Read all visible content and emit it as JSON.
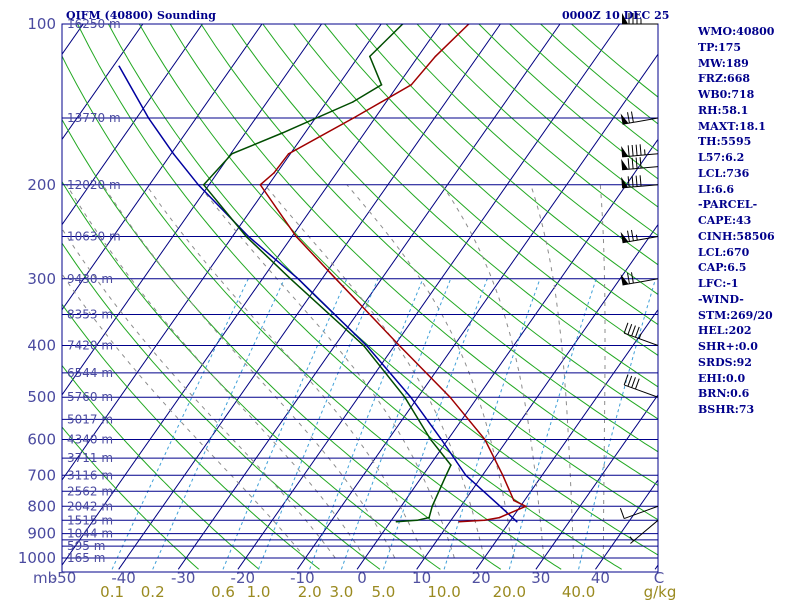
{
  "header": {
    "station": "QIFM (40800) Sounding",
    "time": "0000Z 10 DEC 25"
  },
  "indices": [
    "WMO:40800",
    "TP:175",
    "MW:189",
    "FRZ:668",
    "WB0:718",
    "RH:58.1",
    "MAXT:18.1",
    "TH:5595",
    "L57:6.2",
    "LCL:736",
    "LI:6.6",
    "-PARCEL-",
    "CAPE:43",
    "CINH:58506",
    "LCL:670",
    "CAP:6.5",
    "LFC:-1",
    "-WIND-",
    "STM:269/20",
    "HEL:202",
    "SHR+:0.0",
    "SRDS:92",
    "EHI:0.0",
    "BRN:0.6",
    "BSHR:73"
  ],
  "colors": {
    "isobar": "#00008b",
    "isotherm": "#000080",
    "dry_adiabat": "#22a822",
    "moist_adiabat": "#8c8c8c",
    "mixing_ratio": "#3fa0d8",
    "temperature": "#a00000",
    "dewpoint": "#004d00",
    "parcel": "#0000a0",
    "wind_barb": "#000000",
    "labels": "#4a4aa0",
    "mixing_ratio_labels": "#9a8a20"
  },
  "chart_data": {
    "type": "line",
    "chart_kind": "skew-T log-P sounding diagram",
    "pressure_axis": {
      "unit": "mb",
      "range": [
        1000,
        100
      ],
      "log_scale": true,
      "labels": [
        100,
        200,
        300,
        400,
        500,
        600,
        700,
        800,
        900,
        1000
      ]
    },
    "temperature_axis": {
      "unit": "C",
      "labels": [
        -50,
        -40,
        -30,
        -20,
        -10,
        0,
        10,
        20,
        30,
        40
      ],
      "end_label": "C",
      "range_at_1000mb": [
        -50,
        50
      ]
    },
    "isobars_mb": [
      100,
      150,
      200,
      250,
      300,
      350,
      400,
      450,
      500,
      550,
      600,
      650,
      700,
      750,
      800,
      850,
      900,
      925,
      950,
      1000
    ],
    "height_labels": [
      {
        "p": 100,
        "label": "16250 m"
      },
      {
        "p": 150,
        "label": "13770 m"
      },
      {
        "p": 200,
        "label": "12020 m"
      },
      {
        "p": 250,
        "label": "10630 m"
      },
      {
        "p": 300,
        "label": "9430 m"
      },
      {
        "p": 350,
        "label": "8353 m"
      },
      {
        "p": 400,
        "label": "7420 m"
      },
      {
        "p": 450,
        "label": "6544 m"
      },
      {
        "p": 500,
        "label": "5760 m"
      },
      {
        "p": 550,
        "label": "5017 m"
      },
      {
        "p": 600,
        "label": "4340 m"
      },
      {
        "p": 650,
        "label": "3711 m"
      },
      {
        "p": 700,
        "label": "3116 m"
      },
      {
        "p": 750,
        "label": "2562 m"
      },
      {
        "p": 800,
        "label": "2042 m"
      },
      {
        "p": 850,
        "label": "1515 m"
      },
      {
        "p": 900,
        "label": "1044 m"
      },
      {
        "p": 950,
        "label": "595 m"
      },
      {
        "p": 1000,
        "label": "165 m"
      }
    ],
    "mixing_ratio_labels": [
      "0.1",
      "0.2",
      "0.6",
      "1.0",
      "2.0",
      "3.0",
      "5.0",
      "10.0",
      "20.0",
      "40.0"
    ],
    "mixing_ratio_unit": "g/kg",
    "series": [
      {
        "key": "temperature",
        "points": [
          {
            "p": 855,
            "t": 11.5
          },
          {
            "p": 850,
            "t": 15.6
          },
          {
            "p": 840,
            "t": 17.8
          },
          {
            "p": 800,
            "t": 20.9
          },
          {
            "p": 780,
            "t": 18.2
          },
          {
            "p": 700,
            "t": 13.4
          },
          {
            "p": 600,
            "t": 6.2
          },
          {
            "p": 500,
            "t": -4.6
          },
          {
            "p": 400,
            "t": -19.2
          },
          {
            "p": 300,
            "t": -37.7
          },
          {
            "p": 250,
            "t": -49.3
          },
          {
            "p": 200,
            "t": -61.4
          },
          {
            "p": 190,
            "t": -60.5
          },
          {
            "p": 175,
            "t": -60.3
          },
          {
            "p": 150,
            "t": -53.6
          },
          {
            "p": 130,
            "t": -47.8
          },
          {
            "p": 115,
            "t": -47.1
          },
          {
            "p": 100,
            "t": -45.3
          }
        ]
      },
      {
        "key": "dewpoint",
        "points": [
          {
            "p": 855,
            "t": 1.0
          },
          {
            "p": 850,
            "t": 4.3
          },
          {
            "p": 840,
            "t": 6.0
          },
          {
            "p": 800,
            "t": 5.2
          },
          {
            "p": 700,
            "t": 3.9
          },
          {
            "p": 670,
            "t": 3.5
          },
          {
            "p": 600,
            "t": -2.9
          },
          {
            "p": 500,
            "t": -12.2
          },
          {
            "p": 400,
            "t": -25.2
          },
          {
            "p": 300,
            "t": -45.3
          },
          {
            "p": 250,
            "t": -57.7
          },
          {
            "p": 200,
            "t": -70.9
          },
          {
            "p": 175,
            "t": -69.8
          },
          {
            "p": 160,
            "t": -63.8
          },
          {
            "p": 140,
            "t": -55.6
          },
          {
            "p": 130,
            "t": -52.8
          },
          {
            "p": 115,
            "t": -58.1
          },
          {
            "p": 100,
            "t": -56.4
          }
        ]
      },
      {
        "key": "parcel",
        "points": [
          {
            "p": 855,
            "t": 21.2
          },
          {
            "p": 800,
            "t": 16.6
          },
          {
            "p": 700,
            "t": 7.2
          },
          {
            "p": 600,
            "t": -1.1
          },
          {
            "p": 500,
            "t": -11.2
          },
          {
            "p": 400,
            "t": -24.7
          },
          {
            "p": 300,
            "t": -44.0
          },
          {
            "p": 250,
            "t": -57.3
          },
          {
            "p": 200,
            "t": -71.8
          },
          {
            "p": 175,
            "t": -79.6
          },
          {
            "p": 150,
            "t": -88.0
          },
          {
            "p": 120,
            "t": -99.0
          }
        ]
      }
    ],
    "wind_barbs": [
      {
        "p": 850,
        "dir": 230,
        "kt": 5
      },
      {
        "p": 800,
        "dir": 250,
        "kt": 10
      },
      {
        "p": 500,
        "dir": 290,
        "kt": 40
      },
      {
        "p": 400,
        "dir": 290,
        "kt": 45
      },
      {
        "p": 300,
        "dir": 260,
        "kt": 70
      },
      {
        "p": 250,
        "dir": 260,
        "kt": 75
      },
      {
        "p": 200,
        "dir": 265,
        "kt": 90
      },
      {
        "p": 185,
        "dir": 265,
        "kt": 90
      },
      {
        "p": 175,
        "dir": 265,
        "kt": 95
      },
      {
        "p": 150,
        "dir": 260,
        "kt": 70
      },
      {
        "p": 100,
        "dir": 270,
        "kt": 85
      }
    ]
  }
}
